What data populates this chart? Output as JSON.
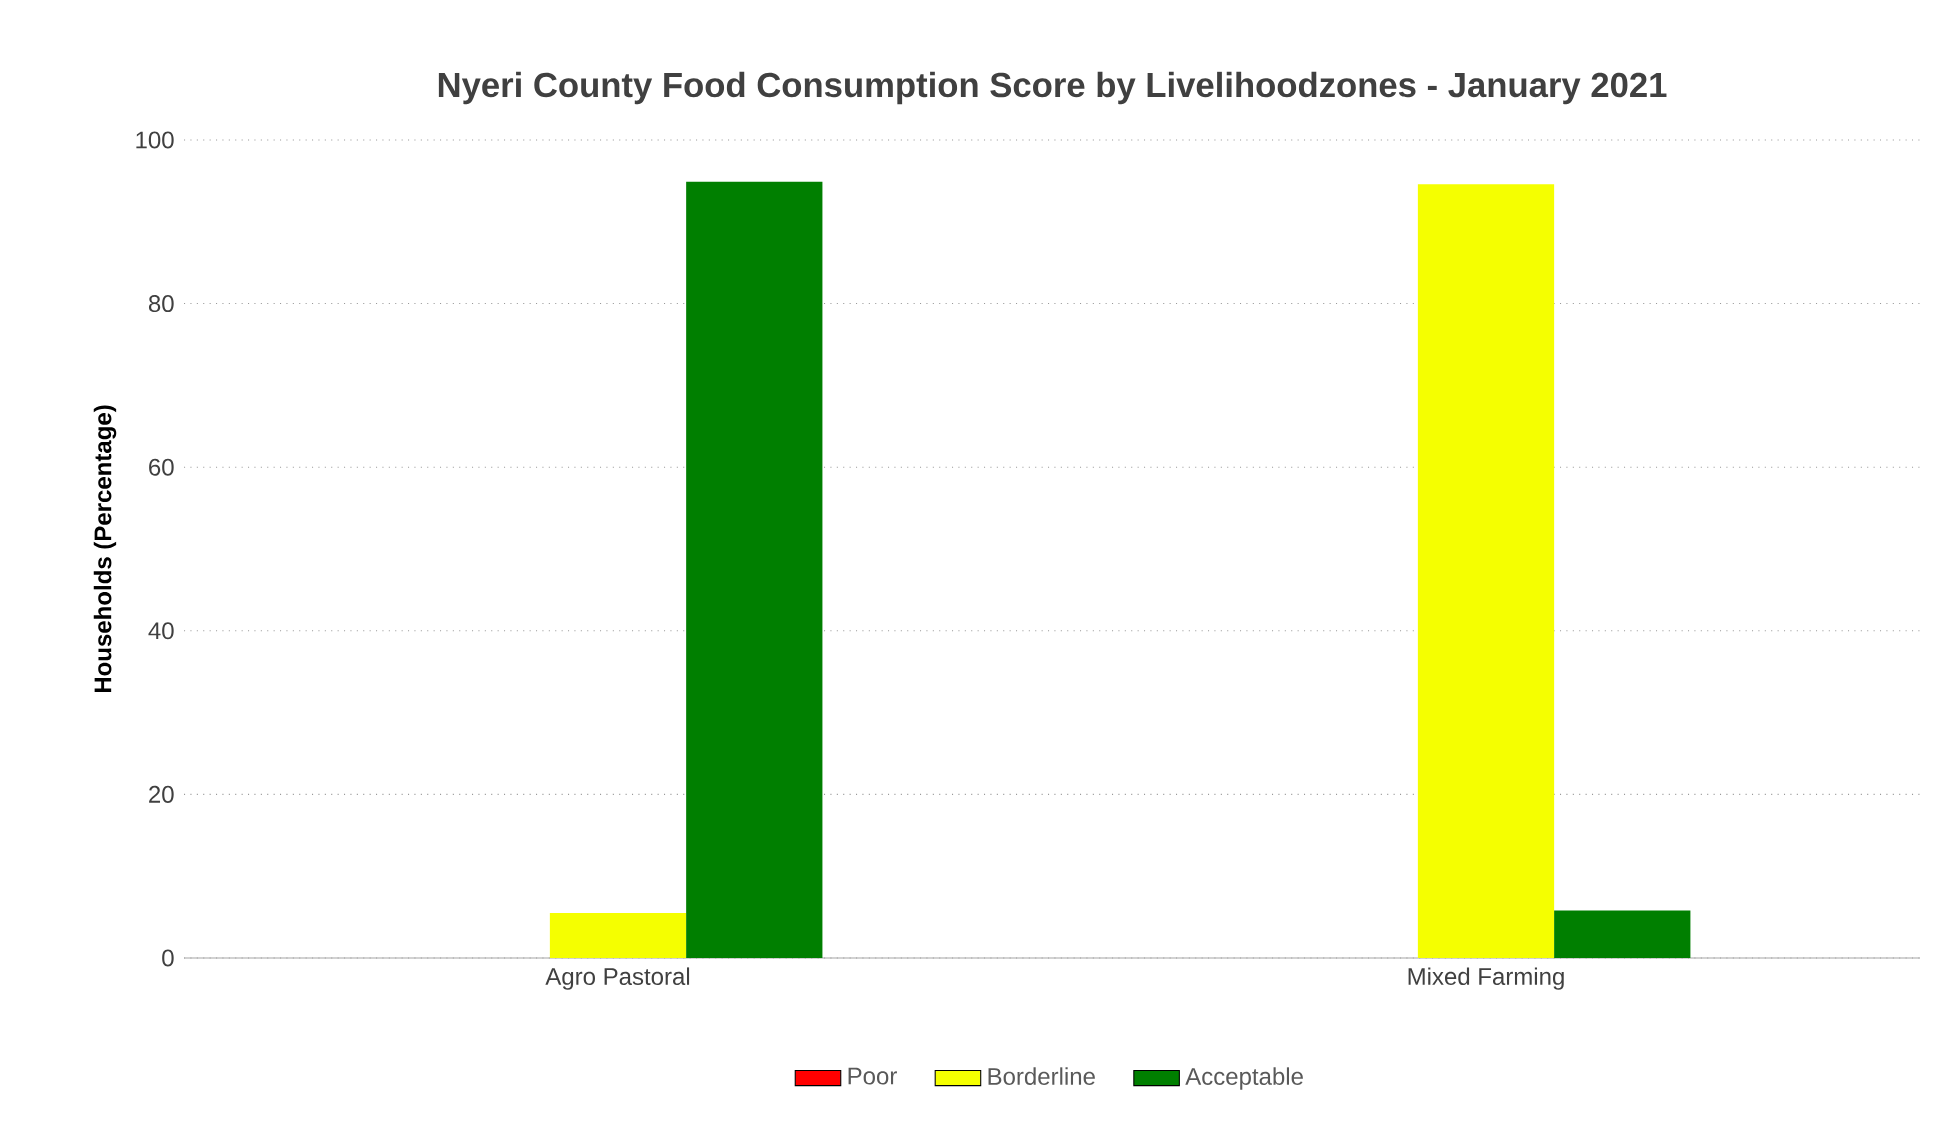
{
  "chart_data": {
    "type": "bar",
    "title": "Nyeri County Food Consumption Score by Livelihoodzones - January 2021",
    "ylabel": "Households (Percentage)",
    "categories": [
      "Agro Pastoral",
      "Mixed Farming"
    ],
    "series": [
      {
        "name": "Poor",
        "color": "#ff0000",
        "values": [
          0,
          0
        ]
      },
      {
        "name": "Borderline",
        "color": "#f5ff00",
        "values": [
          5.5,
          94.6
        ]
      },
      {
        "name": "Acceptable",
        "color": "#007f00",
        "values": [
          94.9,
          5.8
        ]
      }
    ],
    "ylim": [
      0,
      100
    ],
    "yticks": [
      0,
      20,
      40,
      60,
      80,
      100
    ],
    "grid": "y",
    "legend": "bottom"
  }
}
